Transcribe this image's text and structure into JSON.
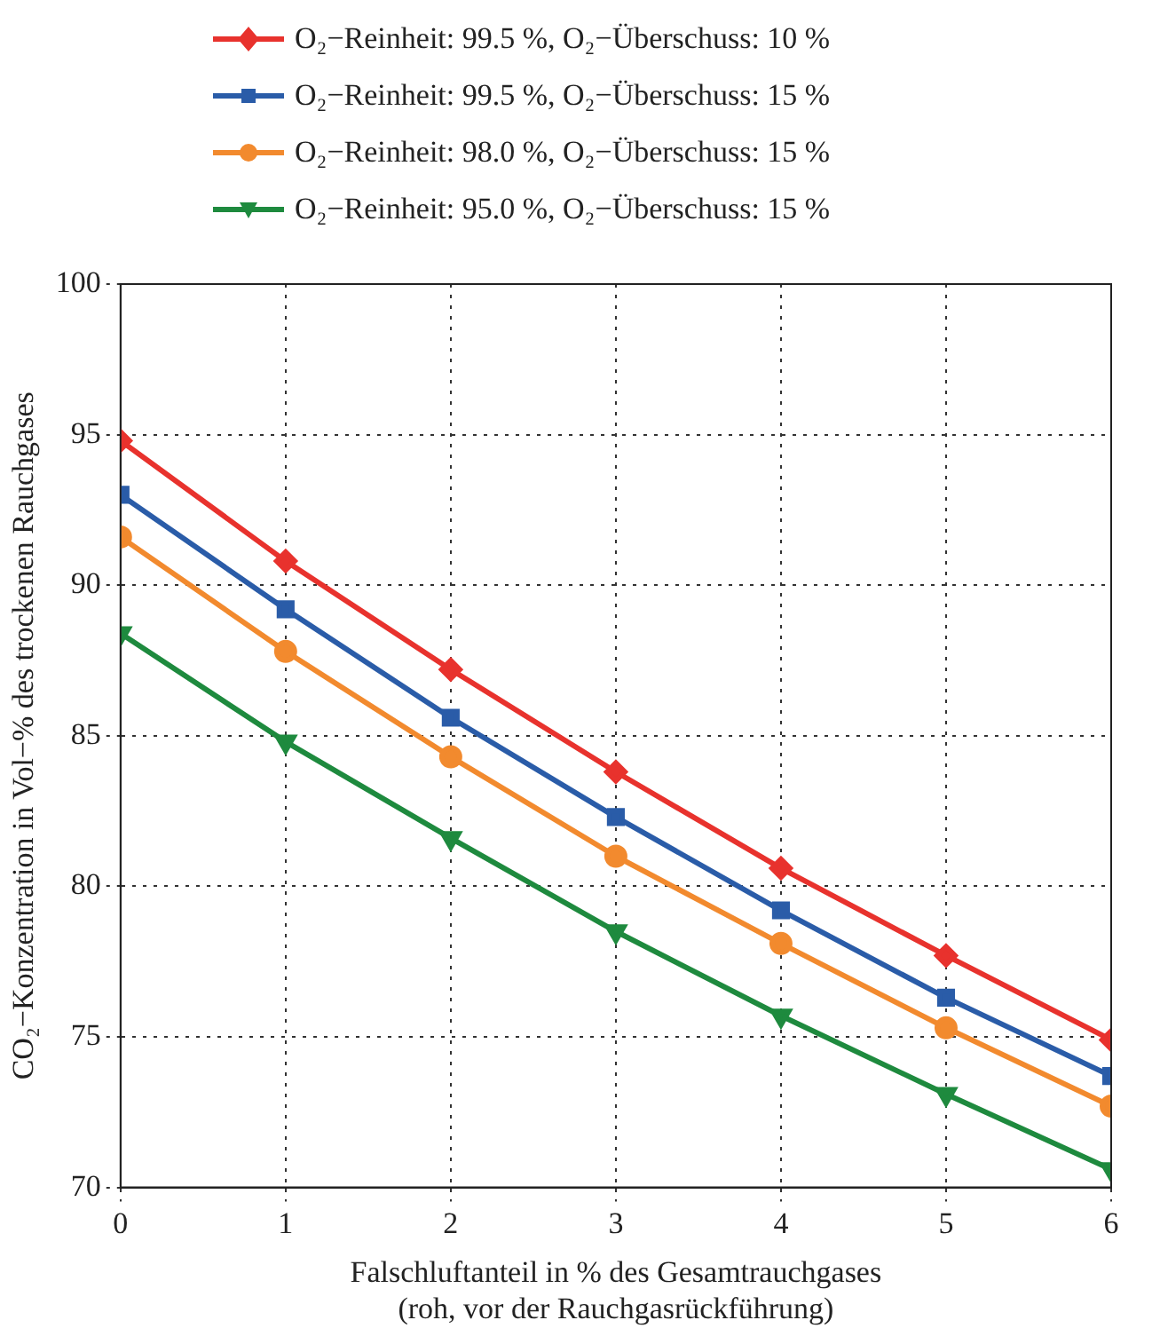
{
  "chart_data": {
    "type": "line",
    "xlabel": "Falschluftanteil in % des Gesamtrauchgases\n(roh, vor der Rauchgasrückführung)",
    "ylabel": "CO₂−Konzentration in Vol−% des trockenen Rauchgases",
    "x": [
      0,
      1,
      2,
      3,
      4,
      5,
      6
    ],
    "series": [
      {
        "name": "O₂−Reinheit: 99.5 %, O₂−Überschuss: 10 %",
        "color": "#e8322d",
        "marker": "diamond",
        "values": [
          94.8,
          90.8,
          87.2,
          83.8,
          80.6,
          77.7,
          74.9
        ]
      },
      {
        "name": "O₂−Reinheit: 99.5 %, O₂−Überschuss: 15 %",
        "color": "#2a5ca8",
        "marker": "square",
        "values": [
          93.0,
          89.2,
          85.6,
          82.3,
          79.2,
          76.3,
          73.7
        ]
      },
      {
        "name": "O₂−Reinheit: 98.0 %, O₂−Überschuss: 15 %",
        "color": "#f28a2e",
        "marker": "circle",
        "values": [
          91.6,
          87.8,
          84.3,
          81.0,
          78.1,
          75.3,
          72.7
        ]
      },
      {
        "name": "O₂−Reinheit: 95.0 %, O₂−Überschuss: 15 %",
        "color": "#1e8a3e",
        "marker": "triangle",
        "values": [
          88.4,
          84.8,
          81.6,
          78.5,
          75.7,
          73.1,
          70.6
        ]
      }
    ],
    "xlim": [
      0,
      6
    ],
    "xticks": [
      0,
      1,
      2,
      3,
      4,
      5,
      6
    ],
    "ylim": [
      70,
      100
    ],
    "yticks": [
      70,
      75,
      80,
      85,
      90,
      95,
      100
    ],
    "grid": true,
    "legend": "top",
    "line_style": "solid"
  }
}
